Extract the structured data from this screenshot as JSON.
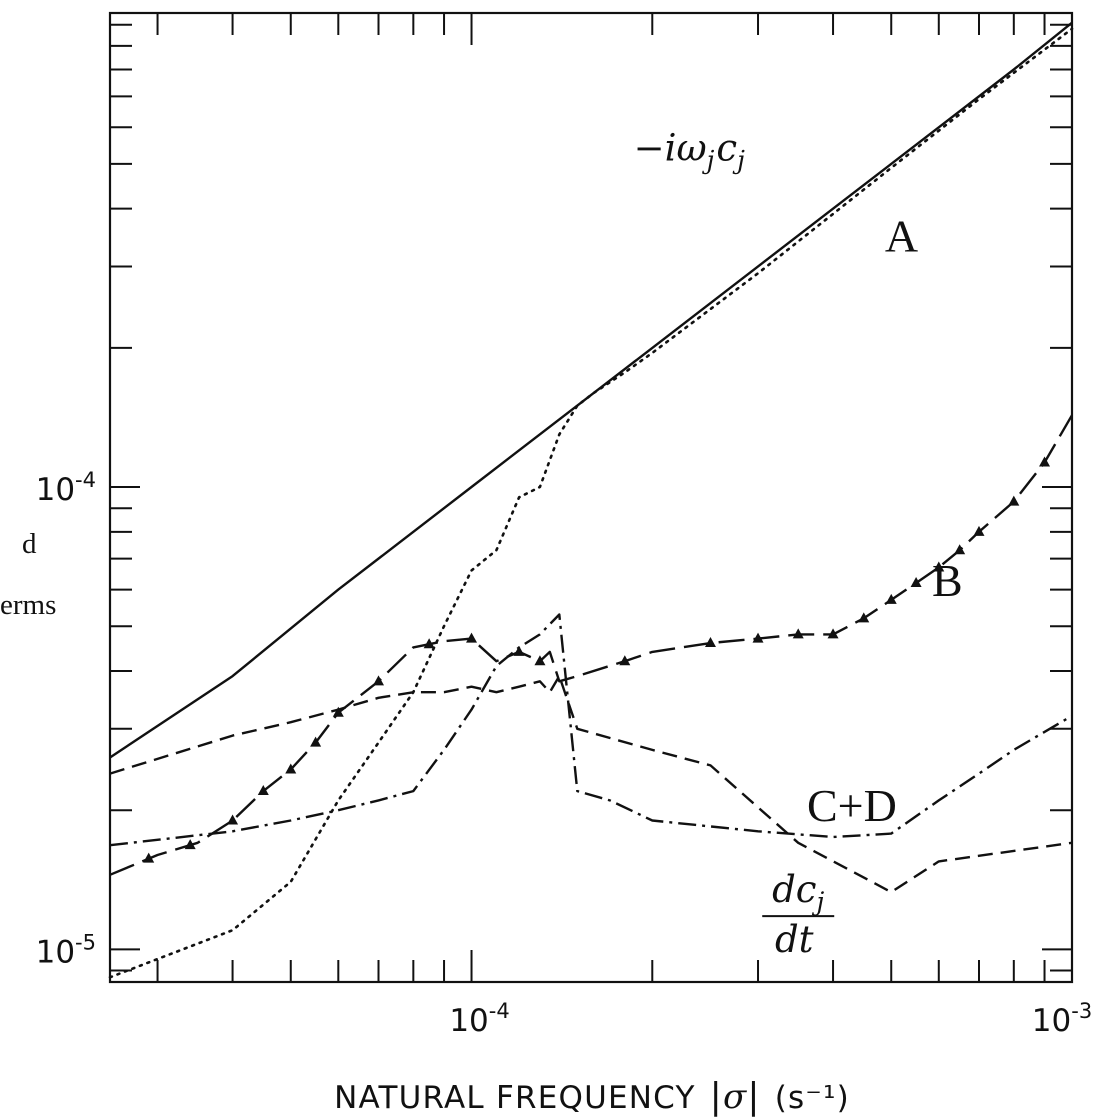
{
  "chart_data": {
    "type": "line",
    "title": "",
    "xlabel": "NATURAL FREQUENCY |σ| (s⁻¹)",
    "xlabel_parts": {
      "text": "NATURAL FREQUENCY",
      "var_open": "|",
      "var": "σ",
      "var_close": "|",
      "unit": "(s⁻¹)"
    },
    "ylabel": "",
    "ylabel_fragments": [
      "d",
      "erms"
    ],
    "x_scale": "log",
    "y_scale": "log",
    "xlim": [
      2.5e-05,
      0.001
    ],
    "ylim": [
      8.5e-06,
      0.00106
    ],
    "x_ticks": [
      {
        "value": 0.0001,
        "label": "10⁻⁴",
        "base": "10",
        "exp": "-4"
      },
      {
        "value": 0.001,
        "label": "10⁻³",
        "base": "10",
        "exp": "-3"
      }
    ],
    "y_ticks": [
      {
        "value": 1e-05,
        "label": "10⁻⁵",
        "base": "10",
        "exp": "-5"
      },
      {
        "value": 0.0001,
        "label": "10⁻⁴",
        "base": "10",
        "exp": "-4"
      }
    ],
    "grid": false,
    "annotations": [
      {
        "id": "omega",
        "text": "−iω_j c_j",
        "parts": [
          "−iω",
          "j",
          "c",
          "j"
        ],
        "x": 0.000255,
        "y": 0.00054
      },
      {
        "id": "label-a",
        "text": "A",
        "x": 0.00052,
        "y": 0.00035
      },
      {
        "id": "label-b",
        "text": "B",
        "x": 0.00062,
        "y": 6.3e-05
      },
      {
        "id": "label-cd",
        "text": "C+D",
        "x": 0.00043,
        "y": 2.05e-05
      },
      {
        "id": "dcdt",
        "numerator": "dc",
        "numerator_sub": "j",
        "denominator": "dt",
        "x": 0.00035,
        "y": 1.18e-05
      }
    ],
    "series": [
      {
        "style": "solid",
        "x": [
          2.5e-05,
          4e-05,
          6e-05,
          0.0001,
          0.0002,
          0.0004,
          0.0006,
          0.0008,
          0.001
        ],
        "y": [
          2.6e-05,
          3.9e-05,
          6e-05,
          0.0001,
          0.0002,
          0.0004,
          0.0006,
          0.0008,
          0.00101
        ]
      },
      {
        "style": "dotted",
        "x": [
          2.5e-05,
          4e-05,
          5e-05,
          6e-05,
          7e-05,
          8e-05,
          9e-05,
          0.0001,
          0.00011,
          0.00012,
          0.00013,
          0.00014,
          0.00015,
          0.00016,
          0.00018,
          0.0002,
          0.0003,
          0.0005,
          0.0007,
          0.001
        ],
        "y": [
          8.7e-06,
          1.1e-05,
          1.4e-05,
          2.1e-05,
          2.8e-05,
          3.6e-05,
          5e-05,
          6.6e-05,
          7.3e-05,
          9.5e-05,
          0.0001,
          0.00013,
          0.00015,
          0.00016,
          0.000177,
          0.000195,
          0.00029,
          0.00049,
          0.00069,
          0.00098
        ]
      },
      {
        "style": "long-dash-triangle",
        "marker": "triangle",
        "x": [
          2.5e-05,
          3e-05,
          3.5e-05,
          4e-05,
          4.5e-05,
          5e-05,
          5.5e-05,
          6e-05,
          7e-05,
          8e-05,
          9e-05,
          0.0001,
          0.00011,
          0.00012,
          0.00013,
          0.000135,
          0.00014,
          0.00015,
          0.00018,
          0.0002,
          0.00025,
          0.0003,
          0.00035,
          0.0004,
          0.00045,
          0.0005,
          0.00055,
          0.0006,
          0.00065,
          0.0007,
          0.0008,
          0.0009,
          0.001
        ],
        "y": [
          1.45e-05,
          1.6e-05,
          1.7e-05,
          1.9e-05,
          2.2e-05,
          2.45e-05,
          2.8e-05,
          3.25e-05,
          3.8e-05,
          4.5e-05,
          4.64e-05,
          4.7e-05,
          4.2e-05,
          4.4e-05,
          4.2e-05,
          4.4e-05,
          3.8e-05,
          3.9e-05,
          4.2e-05,
          4.4e-05,
          4.6e-05,
          4.7e-05,
          4.8e-05,
          4.8e-05,
          5.2e-05,
          5.7e-05,
          6.2e-05,
          6.7e-05,
          7.3e-05,
          8e-05,
          9.3e-05,
          0.000113,
          0.000143
        ],
        "marker_x": [
          2.9e-05,
          3.4e-05,
          4e-05,
          4.5e-05,
          5e-05,
          5.5e-05,
          6e-05,
          7e-05,
          8.5e-05,
          0.0001,
          0.00012,
          0.00013,
          0.00018,
          0.00025,
          0.0003,
          0.00035,
          0.0004,
          0.00045,
          0.0005,
          0.00055,
          0.0006,
          0.00065,
          0.0007,
          0.0008,
          0.0009
        ]
      },
      {
        "style": "dashed",
        "x": [
          2.5e-05,
          4e-05,
          5e-05,
          6e-05,
          7e-05,
          8e-05,
          9e-05,
          0.0001,
          0.00011,
          0.00012,
          0.00013,
          0.000135,
          0.00014,
          0.00015,
          0.0002,
          0.00025,
          0.00035,
          0.0005,
          0.0006,
          0.001
        ],
        "y": [
          2.4e-05,
          2.9e-05,
          3.1e-05,
          3.3e-05,
          3.5e-05,
          3.6e-05,
          3.6e-05,
          3.7e-05,
          3.6e-05,
          3.7e-05,
          3.8e-05,
          3.6e-05,
          3.9e-05,
          3e-05,
          2.7e-05,
          2.5e-05,
          1.7e-05,
          1.33e-05,
          1.55e-05,
          1.7e-05
        ]
      },
      {
        "style": "dash-dot",
        "x": [
          2.5e-05,
          4e-05,
          5e-05,
          6e-05,
          7e-05,
          8e-05,
          9e-05,
          0.0001,
          0.00011,
          0.00012,
          0.00013,
          0.00014,
          0.00015,
          0.00017,
          0.0002,
          0.0003,
          0.0004,
          0.0005,
          0.0006,
          0.0007,
          0.0008,
          0.001
        ],
        "y": [
          1.68e-05,
          1.8e-05,
          1.9e-05,
          2e-05,
          2.1e-05,
          2.2e-05,
          2.7e-05,
          3.3e-05,
          4.1e-05,
          4.5e-05,
          4.8e-05,
          5.3e-05,
          2.2e-05,
          2.1e-05,
          1.9e-05,
          1.8e-05,
          1.75e-05,
          1.78e-05,
          2.1e-05,
          2.4e-05,
          2.7e-05,
          3.2e-05
        ]
      }
    ]
  }
}
